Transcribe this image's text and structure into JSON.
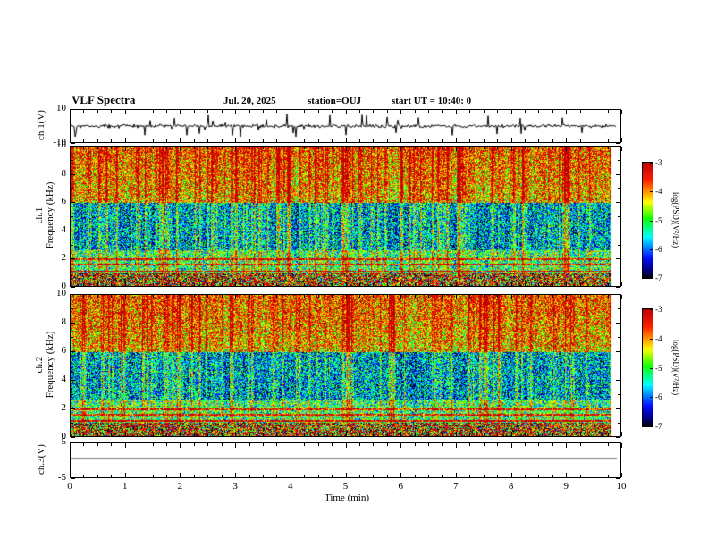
{
  "figure": {
    "title": "VLF Spectra",
    "date": "Jul. 20, 2025",
    "station": "station=OUJ",
    "start_ut": "start UT =  10:40: 0"
  },
  "xaxis": {
    "label": "Time (min)",
    "ticks": [
      0,
      1,
      2,
      3,
      4,
      5,
      6,
      7,
      8,
      9,
      10
    ],
    "xlim": [
      0,
      10
    ]
  },
  "colors": {
    "background": "#ffffff",
    "axis": "#000000",
    "trace": "#000000"
  },
  "chart_data": [
    {
      "panel": "ch1_waveform",
      "type": "line",
      "ylabel": "ch.1(V)",
      "ylim": [
        -10,
        10
      ],
      "yticks": [
        10,
        -10
      ],
      "xlim": [
        0,
        10
      ],
      "signal": "zero-mean broadband noise about ±1.5 V with frequent impulsive spikes up to ±9 V spanning the full 0-10 min record"
    },
    {
      "panel": "ch1_spectrogram",
      "type": "heatmap",
      "ylabel_line1": "ch.1",
      "ylabel_line2": "Frequency (kHz)",
      "ylim": [
        0,
        10
      ],
      "yticks": [
        0,
        2,
        4,
        6,
        8,
        10
      ],
      "xlim": [
        0,
        10
      ],
      "clim": [
        -7,
        -3
      ],
      "colormap": "jet-with-black-floor",
      "colormap_stops": [
        [
          0,
          "#000000"
        ],
        [
          0.08,
          "#00008f"
        ],
        [
          0.18,
          "#0010ff"
        ],
        [
          0.36,
          "#00ffff"
        ],
        [
          0.52,
          "#10ff00"
        ],
        [
          0.66,
          "#ffff00"
        ],
        [
          0.85,
          "#ff2200"
        ],
        [
          1,
          "#c00000"
        ]
      ],
      "colorbar_ticks": [
        -3,
        -4,
        -5,
        -6,
        -7
      ],
      "colorbar_label": "log(PSD)(V²/Hz)",
      "features": [
        "dense vertical broadband impulsive bursts (sferics) reaching -3 across all frequencies",
        "high PSD (green/yellow/red) band above ~6 kHz",
        "low PSD (dark blue, ~ -6.5) band between ~2.6 and 6 kHz",
        "narrow persistent horizontal emission lines near 1.5 and 1.9 kHz",
        "strong red band (~ -4) below ~1 kHz mottled with dark pixels",
        "data ends near 9.85 min leaving a white strip before the right axis"
      ]
    },
    {
      "panel": "ch2_spectrogram",
      "type": "heatmap",
      "ylabel_line1": "ch.2",
      "ylabel_line2": "Frequency (kHz)",
      "ylim": [
        0,
        10
      ],
      "yticks": [
        0,
        2,
        4,
        6,
        8,
        10
      ],
      "xlim": [
        0,
        10
      ],
      "clim": [
        -7,
        -3
      ],
      "colormap": "jet-with-black-floor",
      "colormap_stops": [
        [
          0,
          "#000000"
        ],
        [
          0.08,
          "#00008f"
        ],
        [
          0.18,
          "#0010ff"
        ],
        [
          0.36,
          "#00ffff"
        ],
        [
          0.52,
          "#10ff00"
        ],
        [
          0.66,
          "#ffff00"
        ],
        [
          0.85,
          "#ff2200"
        ],
        [
          1,
          "#c00000"
        ]
      ],
      "colorbar_ticks": [
        -3,
        -4,
        -5,
        -6,
        -7
      ],
      "colorbar_label": "log(PSD)(V²/Hz)",
      "features": [
        "same burst structure as ch.1 spectrogram",
        "horizontal emission lines near 1.5 and 1.9 kHz",
        "red low-frequency band below ~1 kHz"
      ]
    },
    {
      "panel": "ch3_waveform",
      "type": "line",
      "ylabel": "ch.3(V)",
      "ylim": [
        -5,
        5
      ],
      "yticks": [
        5,
        -5
      ],
      "xlim": [
        0,
        10
      ],
      "value": 0.5,
      "signal": "flat constant line at about +0.5 V for the whole record"
    }
  ]
}
